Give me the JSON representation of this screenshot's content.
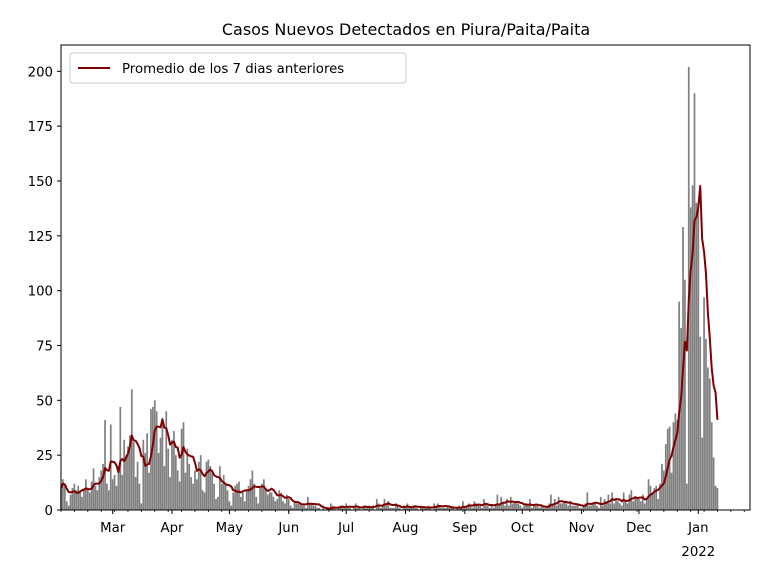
{
  "chart_data": {
    "type": "bar",
    "title": "Casos Nuevos Detectados en Piura/Paita/Paita",
    "xlabel": "",
    "ylabel": "",
    "x_range": [
      "2021-02-02",
      "2022-01-28"
    ],
    "ylim": [
      0,
      212
    ],
    "y_ticks": [
      0,
      25,
      50,
      75,
      100,
      125,
      150,
      175,
      200
    ],
    "x_ticks": [
      {
        "date": "2021-03-01",
        "label": "Mar"
      },
      {
        "date": "2021-04-01",
        "label": "Apr"
      },
      {
        "date": "2021-05-01",
        "label": "May"
      },
      {
        "date": "2021-06-01",
        "label": "Jun"
      },
      {
        "date": "2021-07-01",
        "label": "Jul"
      },
      {
        "date": "2021-08-01",
        "label": "Aug"
      },
      {
        "date": "2021-09-01",
        "label": "Sep"
      },
      {
        "date": "2021-10-01",
        "label": "Oct"
      },
      {
        "date": "2021-11-01",
        "label": "Nov"
      },
      {
        "date": "2021-12-01",
        "label": "Dec"
      },
      {
        "date": "2022-01-01",
        "label": "Jan"
      }
    ],
    "year_label": "2022",
    "grid": false,
    "legend_position": "top-left",
    "bar_color": "#808080",
    "line_color": "#800000",
    "daily_cases_start": "2021-02-02",
    "daily_cases": [
      10,
      14,
      11,
      4,
      2,
      7,
      10,
      12,
      9,
      11,
      8,
      6,
      9,
      14,
      10,
      8,
      13,
      19,
      11,
      9,
      15,
      18,
      21,
      41,
      12,
      9,
      39,
      14,
      16,
      11,
      20,
      47,
      16,
      32,
      25,
      29,
      34,
      55,
      31,
      15,
      22,
      12,
      3,
      32,
      26,
      35,
      17,
      46,
      47,
      50,
      45,
      26,
      33,
      42,
      20,
      45,
      28,
      15,
      32,
      36,
      25,
      18,
      13,
      37,
      40,
      17,
      28,
      21,
      15,
      12,
      18,
      14,
      22,
      25,
      9,
      8,
      22,
      23,
      20,
      17,
      12,
      5,
      6,
      20,
      12,
      16,
      12,
      9,
      4,
      2,
      8,
      11,
      12,
      13,
      6,
      8,
      4,
      9,
      11,
      14,
      18,
      12,
      6,
      3,
      10,
      12,
      14,
      9,
      7,
      8,
      8,
      6,
      4,
      5,
      9,
      8,
      4,
      3,
      7,
      5,
      2,
      1,
      4,
      3,
      3,
      3,
      2,
      2,
      1,
      6,
      3,
      3,
      2,
      2,
      1,
      1,
      0,
      1,
      0,
      1,
      0,
      3,
      2,
      1,
      0,
      1,
      2,
      2,
      1,
      3,
      1,
      1,
      0,
      2,
      3,
      1,
      1,
      0,
      2,
      2,
      1,
      2,
      1,
      2,
      0,
      5,
      3,
      1,
      2,
      5,
      2,
      4,
      1,
      1,
      1,
      3,
      2,
      1,
      0,
      2,
      1,
      3,
      1,
      1,
      2,
      2,
      1,
      0,
      2,
      1,
      1,
      1,
      2,
      1,
      0,
      3,
      2,
      3,
      2,
      1,
      1,
      1,
      2,
      1,
      1,
      1,
      0,
      1,
      2,
      1,
      4,
      1,
      2,
      3,
      2,
      1,
      4,
      3,
      2,
      2,
      1,
      5,
      3,
      2,
      1,
      2,
      1,
      2,
      7,
      2,
      6,
      3,
      2,
      5,
      2,
      6,
      3,
      4,
      3,
      3,
      2,
      1,
      2,
      3,
      2,
      5,
      1,
      2,
      2,
      2,
      1,
      2,
      1,
      1,
      1,
      3,
      7,
      2,
      5,
      2,
      6,
      3,
      3,
      4,
      3,
      2,
      4,
      2,
      2,
      2,
      3,
      1,
      1,
      2,
      3,
      8,
      2,
      2,
      3,
      3,
      2,
      1,
      6,
      2,
      5,
      4,
      7,
      3,
      8,
      3,
      5,
      4,
      3,
      2,
      8,
      4,
      3,
      7,
      9,
      4,
      6,
      5,
      5,
      4,
      7,
      3,
      5,
      14,
      11,
      8,
      10,
      11,
      5,
      12,
      21,
      18,
      30,
      37,
      38,
      17,
      40,
      44,
      41,
      95,
      83,
      129,
      105,
      12,
      202,
      138,
      148,
      190,
      140,
      137,
      79,
      33,
      97,
      78,
      65,
      60,
      40,
      24,
      11,
      10
    ]
  },
  "legend": {
    "items": [
      {
        "label": "Promedio de los 7 dias anteriores",
        "color": "#800000"
      }
    ]
  }
}
